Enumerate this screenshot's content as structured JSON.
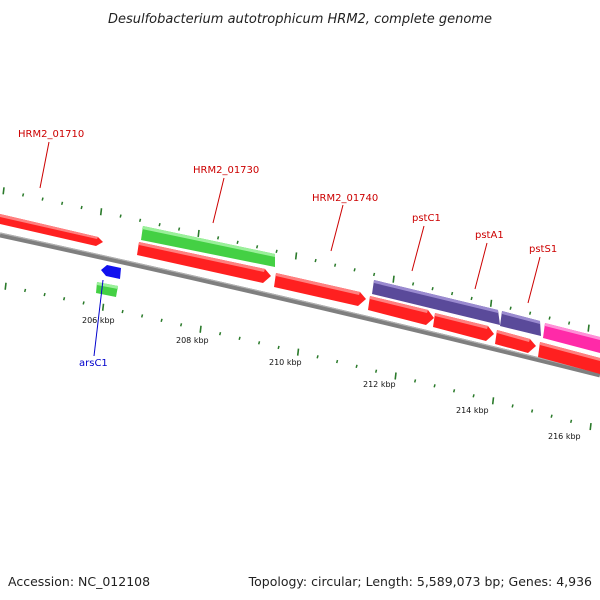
{
  "title": "Desulfobacterium autotrophicum HRM2, complete genome",
  "footer": {
    "accession": "Accession: NC_012108",
    "summary": "Topology: circular; Length: 5,589,073 bp; Genes: 4,936"
  },
  "colors": {
    "red_gene": "#ff2020",
    "green_gene": "#44d044",
    "purple_gene": "#5a4a9a",
    "pink_gene": "#ff2aa8",
    "blue_gene": "#1010ee",
    "tick": "#2a7a2a",
    "backbone": "#8a8a8a",
    "label_red": "#cc0000",
    "label_blue": "#0000cc"
  },
  "scale_labels": [
    "206 kbp",
    "208 kbp",
    "210 kbp",
    "212 kbp",
    "214 kbp",
    "216 kbp"
  ],
  "gene_labels": [
    {
      "text": "HRM2_01710",
      "color": "label_red"
    },
    {
      "text": "HRM2_01730",
      "color": "label_red"
    },
    {
      "text": "HRM2_01740",
      "color": "label_red"
    },
    {
      "text": "pstC1",
      "color": "label_red"
    },
    {
      "text": "pstA1",
      "color": "label_red"
    },
    {
      "text": "pstS1",
      "color": "label_red"
    },
    {
      "text": "arsC1",
      "color": "label_blue"
    }
  ]
}
